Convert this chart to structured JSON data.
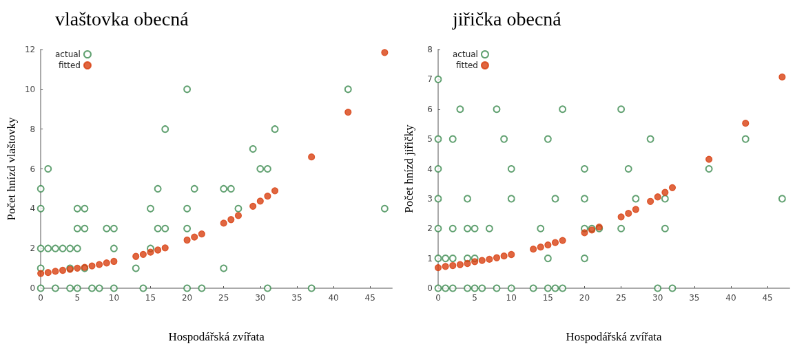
{
  "chart_data": [
    {
      "type": "scatter",
      "title": "vlaštovka obecná",
      "xlabel": "Hospodářská zvířata",
      "ylabel": "Počet hnízd vlaštovky",
      "xlim": [
        0,
        48
      ],
      "xticks": [
        0,
        5,
        10,
        15,
        20,
        25,
        30,
        35,
        40,
        45
      ],
      "ylim": [
        0,
        12
      ],
      "yticks": [
        0,
        2,
        4,
        6,
        8,
        10,
        12
      ],
      "grid": false,
      "legend": "top left",
      "series": [
        {
          "name": "actual",
          "color": "#3a8a4e",
          "marker": "open circle",
          "x": [
            0,
            0,
            0,
            0,
            0,
            1,
            1,
            2,
            2,
            3,
            4,
            4,
            4,
            5,
            5,
            5,
            5,
            6,
            6,
            6,
            7,
            8,
            9,
            10,
            10,
            10,
            13,
            14,
            15,
            15,
            16,
            16,
            17,
            17,
            20,
            20,
            20,
            20,
            21,
            22,
            25,
            25,
            26,
            27,
            29,
            30,
            31,
            31,
            32,
            37,
            42,
            47
          ],
          "values": [
            0,
            1,
            2,
            4,
            5,
            6,
            2,
            2,
            0,
            2,
            2,
            1,
            0,
            4,
            3,
            2,
            0,
            4,
            3,
            1,
            0,
            0,
            3,
            3,
            2,
            0,
            1,
            0,
            4,
            2,
            5,
            3,
            8,
            3,
            10,
            4,
            3,
            0,
            5,
            0,
            5,
            1,
            5,
            4,
            7,
            6,
            6,
            0,
            8,
            0,
            10,
            4
          ]
        },
        {
          "name": "fitted",
          "color": "#d84010",
          "marker": "circle",
          "x": [
            0,
            1,
            2,
            3,
            4,
            5,
            6,
            7,
            8,
            9,
            10,
            13,
            14,
            15,
            16,
            17,
            20,
            21,
            22,
            25,
            26,
            27,
            29,
            30,
            31,
            32,
            37,
            42,
            47
          ],
          "values": [
            0.74,
            0.79,
            0.85,
            0.9,
            0.95,
            1.01,
            1.05,
            1.12,
            1.19,
            1.27,
            1.35,
            1.6,
            1.7,
            1.81,
            1.92,
            2.03,
            2.42,
            2.57,
            2.73,
            3.27,
            3.45,
            3.65,
            4.12,
            4.38,
            4.63,
            4.9,
            6.6,
            8.85,
            11.85
          ]
        }
      ]
    },
    {
      "type": "scatter",
      "title": "jiřička obecná",
      "xlabel": "Hospodářská zvířata",
      "ylabel": "Počet hnízd jiřičky",
      "xlim": [
        0,
        48
      ],
      "xticks": [
        0,
        5,
        10,
        15,
        20,
        25,
        30,
        35,
        40,
        45
      ],
      "ylim": [
        0,
        8
      ],
      "yticks": [
        0,
        1,
        2,
        3,
        4,
        5,
        6,
        7,
        8
      ],
      "grid": false,
      "legend": "top left",
      "series": [
        {
          "name": "actual",
          "color": "#3a8a4e",
          "marker": "open circle",
          "x": [
            0,
            0,
            0,
            0,
            0,
            0,
            0,
            1,
            1,
            2,
            2,
            2,
            2,
            3,
            4,
            4,
            4,
            4,
            5,
            5,
            5,
            6,
            7,
            8,
            8,
            9,
            10,
            10,
            10,
            13,
            14,
            15,
            15,
            15,
            16,
            16,
            17,
            17,
            20,
            20,
            20,
            20,
            21,
            22,
            25,
            25,
            26,
            27,
            29,
            30,
            31,
            31,
            32,
            37,
            42,
            47
          ],
          "values": [
            7,
            5,
            4,
            3,
            2,
            1,
            0,
            1,
            0,
            5,
            2,
            1,
            0,
            6,
            3,
            2,
            1,
            0,
            2,
            1,
            0,
            0,
            2,
            6,
            0,
            5,
            4,
            3,
            0,
            0,
            2,
            5,
            1,
            0,
            3,
            0,
            6,
            0,
            4,
            3,
            2,
            1,
            2,
            2,
            6,
            2,
            4,
            3,
            5,
            0,
            3,
            2,
            0,
            4,
            5,
            3
          ]
        },
        {
          "name": "fitted",
          "color": "#d84010",
          "marker": "circle",
          "x": [
            0,
            1,
            2,
            3,
            4,
            5,
            6,
            7,
            8,
            9,
            10,
            13,
            14,
            15,
            16,
            17,
            20,
            21,
            22,
            25,
            26,
            27,
            29,
            30,
            31,
            32,
            37,
            42,
            47
          ],
          "values": [
            0.69,
            0.73,
            0.76,
            0.79,
            0.83,
            0.89,
            0.93,
            0.97,
            1.02,
            1.08,
            1.13,
            1.31,
            1.38,
            1.45,
            1.53,
            1.6,
            1.86,
            1.95,
            2.05,
            2.39,
            2.51,
            2.64,
            2.91,
            3.06,
            3.21,
            3.37,
            4.32,
            5.53,
            7.08
          ]
        }
      ]
    }
  ]
}
